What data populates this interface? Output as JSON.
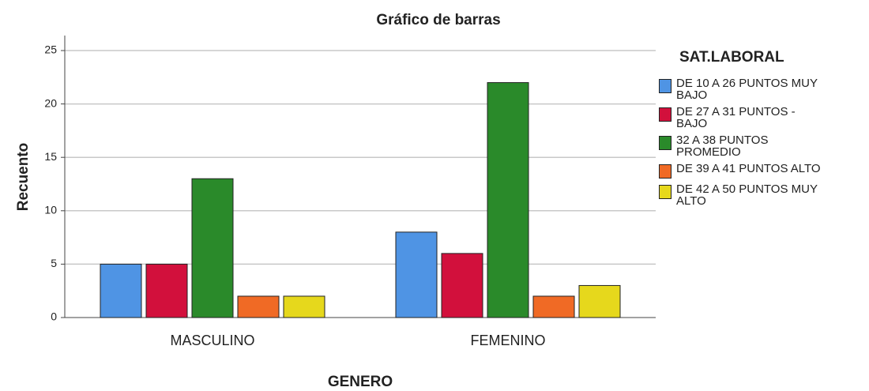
{
  "chart_data": {
    "type": "bar",
    "title": "Gráfico de barras",
    "x_label": "GENERO",
    "y_label": "Recuento",
    "categories": [
      "MASCULINO",
      "FEMENINO"
    ],
    "legend_title": "SAT.LABORAL",
    "series": [
      {
        "name": "DE 10 A 26 PUNTOS MUY BAJO",
        "color": "#4f94e4",
        "values": [
          5,
          8
        ]
      },
      {
        "name": "DE 27 A 31 PUNTOS - BAJO",
        "color": "#d2103c",
        "values": [
          5,
          6
        ]
      },
      {
        "name": "32 A 38 PUNTOS PROMEDIO",
        "color": "#2a8a2a",
        "values": [
          13,
          22
        ]
      },
      {
        "name": "DE 39 A 41 PUNTOS ALTO",
        "color": "#f06a25",
        "values": [
          2,
          2
        ]
      },
      {
        "name": "DE 42 A 50 PUNTOS MUY ALTO",
        "color": "#e6d81c",
        "values": [
          2,
          3
        ]
      }
    ],
    "ylim": [
      0,
      25
    ],
    "yticks": [
      0,
      5,
      10,
      15,
      20,
      25
    ],
    "grid": true,
    "legend": "right"
  }
}
